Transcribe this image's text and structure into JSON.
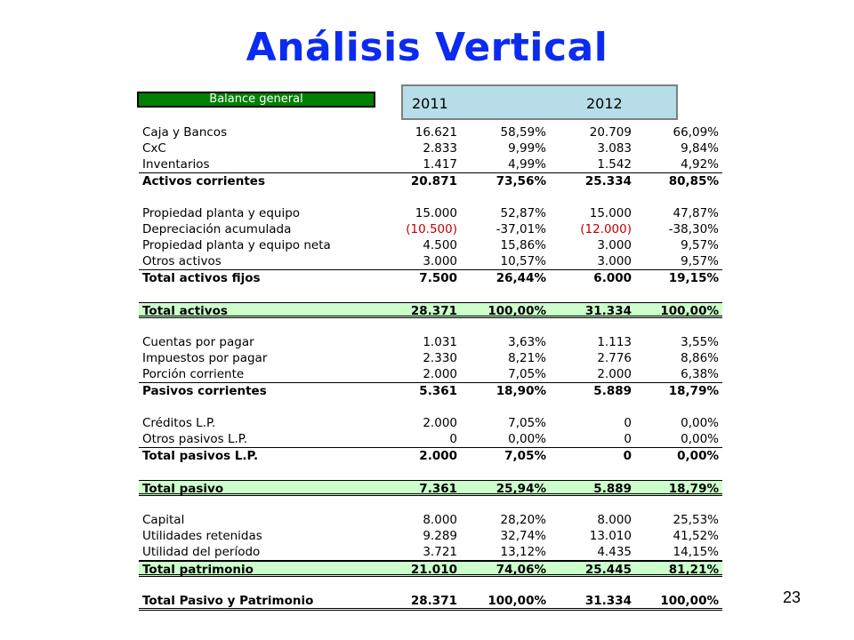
{
  "title": "Análisis Vertical",
  "header": "Balance general",
  "years": [
    "2011",
    "2012"
  ],
  "page_number": "23",
  "colors": {
    "title": "#0b2bf0",
    "header_bg": "#008000",
    "year_bg": "#b7dde8",
    "total_bg": "#ccffcc",
    "negative": "#c00000"
  },
  "rows": [
    {
      "label": "Caja y Bancos",
      "v1": "16.621",
      "p1": "58,59%",
      "v2": "20.709",
      "p2": "66,09%"
    },
    {
      "label": "CxC",
      "v1": "2.833",
      "p1": "9,99%",
      "v2": "3.083",
      "p2": "9,84%"
    },
    {
      "label": "Inventarios",
      "v1": "1.417",
      "p1": "4,99%",
      "v2": "1.542",
      "p2": "4,92%"
    },
    {
      "label": "Activos corrientes",
      "v1": "20.871",
      "p1": "73,56%",
      "v2": "25.334",
      "p2": "80,85%"
    },
    {
      "label": "Propiedad planta y equipo",
      "v1": "15.000",
      "p1": "52,87%",
      "v2": "15.000",
      "p2": "47,87%"
    },
    {
      "label": "Depreciación acumulada",
      "v1": "(10.500)",
      "p1": "-37,01%",
      "v2": "(12.000)",
      "p2": "-38,30%"
    },
    {
      "label": "Propiedad planta y equipo neta",
      "v1": "4.500",
      "p1": "15,86%",
      "v2": "3.000",
      "p2": "9,57%"
    },
    {
      "label": "Otros activos",
      "v1": "3.000",
      "p1": "10,57%",
      "v2": "3.000",
      "p2": "9,57%"
    },
    {
      "label": "Total activos fijos",
      "v1": "7.500",
      "p1": "26,44%",
      "v2": "6.000",
      "p2": "19,15%"
    },
    {
      "label": "Total activos",
      "v1": "28.371",
      "p1": "100,00%",
      "v2": "31.334",
      "p2": "100,00%"
    },
    {
      "label": "Cuentas por pagar",
      "v1": "1.031",
      "p1": "3,63%",
      "v2": "1.113",
      "p2": "3,55%"
    },
    {
      "label": "Impuestos por pagar",
      "v1": "2.330",
      "p1": "8,21%",
      "v2": "2.776",
      "p2": "8,86%"
    },
    {
      "label": "Porción corriente",
      "v1": "2.000",
      "p1": "7,05%",
      "v2": "2.000",
      "p2": "6,38%"
    },
    {
      "label": "Pasivos corrientes",
      "v1": "5.361",
      "p1": "18,90%",
      "v2": "5.889",
      "p2": "18,79%"
    },
    {
      "label": "Créditos L.P.",
      "v1": "2.000",
      "p1": "7,05%",
      "v2": "0",
      "p2": "0,00%"
    },
    {
      "label": "Otros pasivos L.P.",
      "v1": "0",
      "p1": "0,00%",
      "v2": "0",
      "p2": "0,00%"
    },
    {
      "label": "Total pasivos L.P.",
      "v1": "2.000",
      "p1": "7,05%",
      "v2": "0",
      "p2": "0,00%"
    },
    {
      "label": "Total pasivo",
      "v1": "7.361",
      "p1": "25,94%",
      "v2": "5.889",
      "p2": "18,79%"
    },
    {
      "label": "Capital",
      "v1": "8.000",
      "p1": "28,20%",
      "v2": "8.000",
      "p2": "25,53%"
    },
    {
      "label": "Utilidades retenidas",
      "v1": "9.289",
      "p1": "32,74%",
      "v2": "13.010",
      "p2": "41,52%"
    },
    {
      "label": "Utilidad del período",
      "v1": "3.721",
      "p1": "13,12%",
      "v2": "4.435",
      "p2": "14,15%"
    },
    {
      "label": "Total patrimonio",
      "v1": "21.010",
      "p1": "74,06%",
      "v2": "25.445",
      "p2": "81,21%"
    },
    {
      "label": "Total Pasivo y Patrimonio",
      "v1": "28.371",
      "p1": "100,00%",
      "v2": "31.334",
      "p2": "100,00%"
    }
  ]
}
